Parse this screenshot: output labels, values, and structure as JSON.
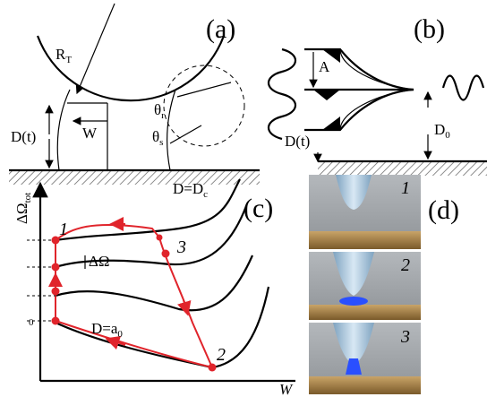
{
  "panel_a": {
    "label": "(a)",
    "radius": {
      "text": "R",
      "sub": "T"
    },
    "width": "W",
    "distance": "D(t)",
    "angle_top": {
      "text": "θ",
      "sub": "r"
    },
    "angle_bottom": {
      "text": "θ",
      "sub": "s"
    }
  },
  "panel_b": {
    "label": "(b)",
    "amplitude": "A",
    "distance": "D(t)",
    "rest_distance": {
      "text": "D",
      "sub": "0"
    }
  },
  "panel_c": {
    "label": "(c)",
    "y_axis": {
      "text": "ΔΩ",
      "sub": "tot"
    },
    "x_axis": "W",
    "y_tick": "0",
    "curve_top": {
      "text": "D=D",
      "sub": "c"
    },
    "curve_bottom": {
      "text": "D=a",
      "sub": "0"
    },
    "gap": "ΔΩ",
    "points": [
      "1",
      "2",
      "3"
    ]
  },
  "panel_d": {
    "label": "(d)",
    "frames": [
      "1",
      "2",
      "3"
    ]
  }
}
